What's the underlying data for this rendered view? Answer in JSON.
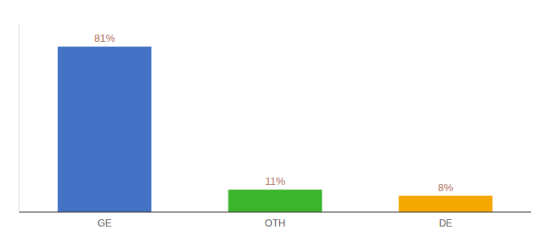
{
  "chart_data": {
    "type": "bar",
    "categories": [
      "GE",
      "OTH",
      "DE"
    ],
    "values": [
      81,
      11,
      8
    ],
    "value_labels": [
      "81%",
      "11%",
      "8%"
    ],
    "colors": [
      "#4472c4",
      "#3cb52e",
      "#f5a800"
    ],
    "ylim": [
      0,
      92
    ],
    "data_labels": true,
    "tick_labels": "x"
  }
}
